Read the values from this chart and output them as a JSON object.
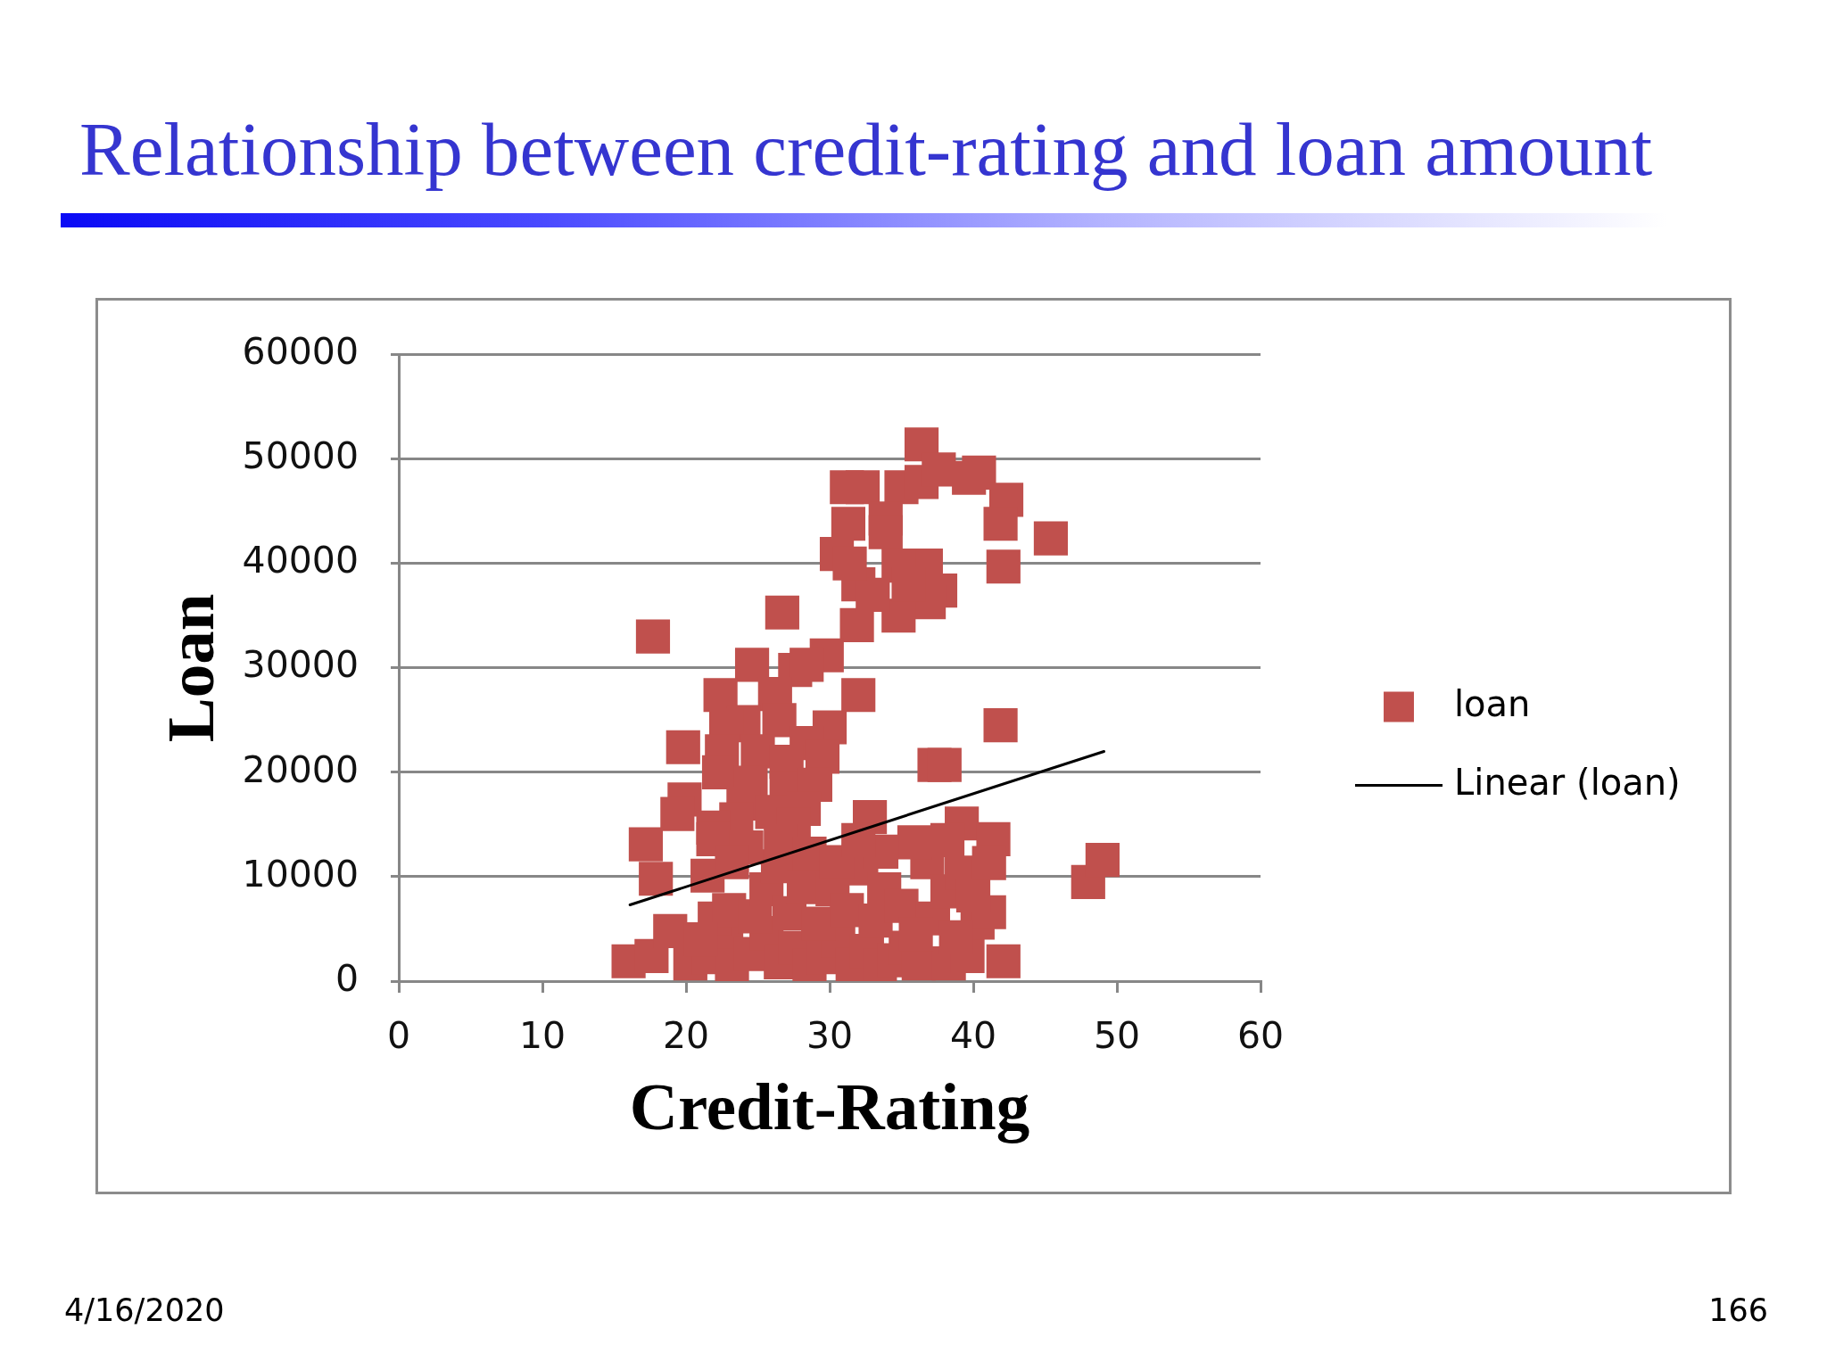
{
  "chart_data": {
    "type": "scatter",
    "title": "Relationship between credit-rating and loan amount",
    "xlabel": "Credit-Rating",
    "ylabel": "Loan",
    "xlim": [
      0,
      60
    ],
    "xticks": [
      0,
      10,
      20,
      30,
      40,
      50,
      60
    ],
    "ylim": [
      0,
      60000
    ],
    "yticks": [
      0,
      10000,
      20000,
      30000,
      40000,
      50000,
      60000
    ],
    "grid": "y",
    "legend": "right",
    "annotations": [
      "4/16/2020",
      "166"
    ],
    "series": [
      {
        "name": "loan",
        "color": "#c0504d",
        "marker": "square",
        "x": [
          31.2,
          32.3,
          35.0,
          36.4,
          36.4,
          37.6,
          39.7,
          40.4,
          42.3,
          41.9,
          45.4,
          42.1,
          31.3,
          33.9,
          30.5,
          32.0,
          31.9,
          36.7,
          37.7,
          36.9,
          34.8,
          34.8,
          35.5,
          33.0,
          33.9,
          17.7,
          26.7,
          24.6,
          27.6,
          29.8,
          28.4,
          22.4,
          32.0,
          26.2,
          19.8,
          30.0,
          24.0,
          26.5,
          28.4,
          22.8,
          22.5,
          25.0,
          27.0,
          29.5,
          22.3,
          24.5,
          27.0,
          29.0,
          24.0,
          26.0,
          28.2,
          23.5,
          27.5,
          32.8,
          19.9,
          19.4,
          17.2,
          17.9,
          21.5,
          21.9,
          21.9,
          16.0,
          17.6,
          18.9,
          20.3,
          21.6,
          22.8,
          23.2,
          24.5,
          25.6,
          26.6,
          27.6,
          28.6,
          29.6,
          30.6,
          31.6,
          32.6,
          33.5,
          34.5,
          35.3,
          36.2,
          38.3,
          39.6,
          40.3,
          41.1,
          42.1,
          22.0,
          23.0,
          24.8,
          25.6,
          26.4,
          27.2,
          28.2,
          29.2,
          30.2,
          31.2,
          32.2,
          33.2,
          33.8,
          35.0,
          36.8,
          37.2,
          38.2,
          39.2,
          40.0,
          35.9,
          39.2,
          41.4,
          41.1,
          38.2,
          48.0,
          49.0,
          24.2,
          26.6,
          28.6,
          30.5,
          33.6,
          23.2,
          21.0,
          36.0,
          38.8,
          32.0,
          37.3,
          38.0,
          41.9,
          31.4
        ],
        "values": [
          47300,
          47300,
          47300,
          47800,
          51400,
          49000,
          48200,
          48700,
          46100,
          43800,
          42400,
          39700,
          43800,
          44300,
          40900,
          38000,
          34100,
          39800,
          37400,
          36300,
          35000,
          39800,
          38000,
          37000,
          43000,
          33000,
          35300,
          30300,
          29800,
          31200,
          30300,
          27400,
          27400,
          27500,
          22400,
          24300,
          24800,
          25000,
          22800,
          24500,
          22000,
          22000,
          21000,
          21500,
          20000,
          19000,
          18500,
          18800,
          17000,
          16200,
          16500,
          15500,
          15000,
          15700,
          17400,
          16000,
          13100,
          9800,
          10100,
          14700,
          13600,
          1900,
          2400,
          4800,
          1700,
          2300,
          4000,
          1500,
          2600,
          4600,
          1800,
          3200,
          1500,
          2300,
          3900,
          1600,
          2900,
          1500,
          2000,
          3200,
          1700,
          1700,
          2400,
          5600,
          6600,
          1900,
          6000,
          6800,
          6200,
          8800,
          11000,
          6500,
          9000,
          5500,
          8800,
          6800,
          10800,
          5800,
          8800,
          7200,
          11400,
          6000,
          8600,
          10400,
          8200,
          13300,
          15100,
          13600,
          11300,
          13500,
          9500,
          11600,
          12800,
          13400,
          12200,
          11400,
          12400,
          11400,
          4000,
          4500,
          4200,
          13500,
          20700,
          20700,
          24500,
          40000
        ]
      },
      {
        "name": "Linear (loan)",
        "type": "line",
        "color": "#000000",
        "x": [
          16.1,
          49.1
        ],
        "values": [
          7300,
          22000
        ]
      }
    ]
  }
}
